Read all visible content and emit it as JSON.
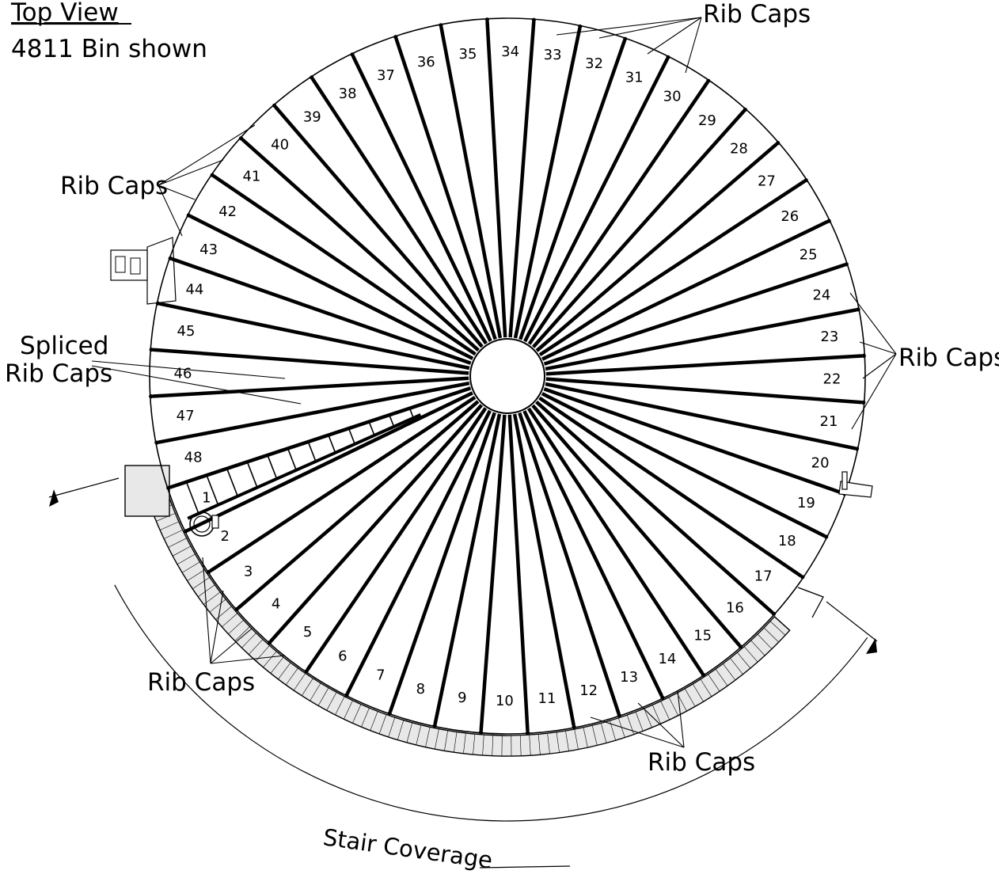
{
  "header": {
    "title": "Top View",
    "subtitle": "4811 Bin shown"
  },
  "bin": {
    "panel_count": 48,
    "panel_numbers": [
      "1",
      "2",
      "3",
      "4",
      "5",
      "6",
      "7",
      "8",
      "9",
      "10",
      "11",
      "12",
      "13",
      "14",
      "15",
      "16",
      "17",
      "18",
      "19",
      "20",
      "21",
      "22",
      "23",
      "24",
      "25",
      "26",
      "27",
      "28",
      "29",
      "30",
      "31",
      "32",
      "33",
      "34",
      "35",
      "36",
      "37",
      "38",
      "39",
      "40",
      "41",
      "42",
      "43",
      "44",
      "45",
      "46",
      "47",
      "48"
    ]
  },
  "callouts": {
    "rib_caps_top": "Rib Caps",
    "rib_caps_left": "Rib Caps",
    "rib_caps_right": "Rib Caps",
    "rib_caps_bottom_left": "Rib Caps",
    "rib_caps_bottom_right": "Rib Caps",
    "spliced_line1": "Spliced",
    "spliced_line2": "Rib Caps"
  },
  "stair_coverage": {
    "label": "Stair Coverage"
  }
}
